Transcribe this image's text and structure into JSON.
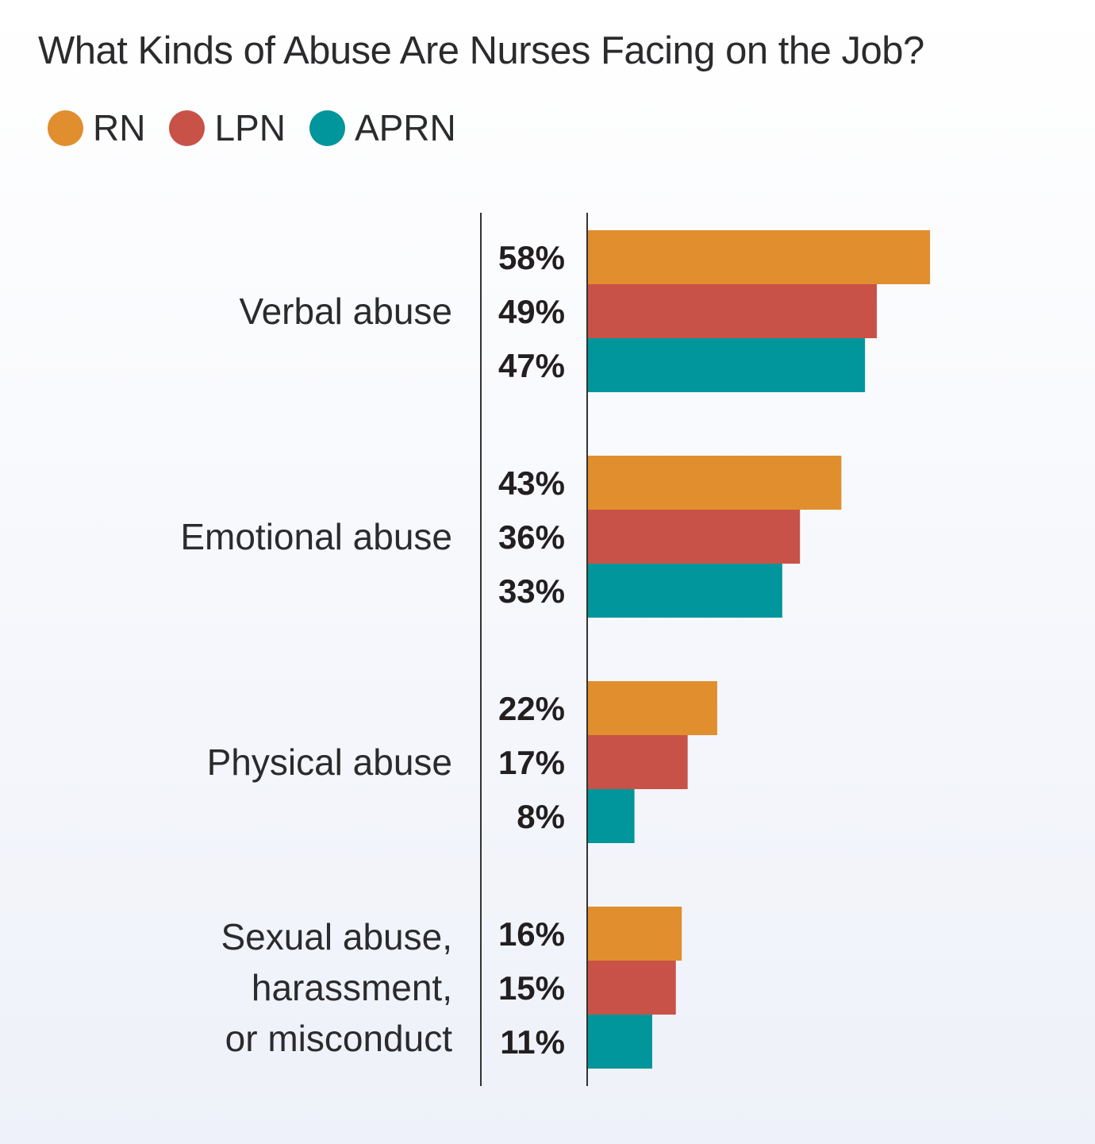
{
  "chart_data": {
    "type": "bar",
    "orientation": "horizontal",
    "title": "What Kinds of Abuse Are Nurses Facing on the Job?",
    "categories": [
      [
        "Verbal abuse"
      ],
      [
        "Emotional abuse"
      ],
      [
        "Physical abuse"
      ],
      [
        "Sexual abuse,",
        "harassment,",
        "or misconduct"
      ]
    ],
    "series": [
      {
        "name": "RN",
        "color": "#E08E2E",
        "values": [
          58,
          43,
          22,
          16
        ]
      },
      {
        "name": "LPN",
        "color": "#C85248",
        "values": [
          49,
          36,
          17,
          15
        ]
      },
      {
        "name": "APRN",
        "color": "#00969C",
        "values": [
          47,
          33,
          8,
          11
        ]
      }
    ],
    "value_suffix": "%",
    "legend": "top-left",
    "grid": false
  }
}
